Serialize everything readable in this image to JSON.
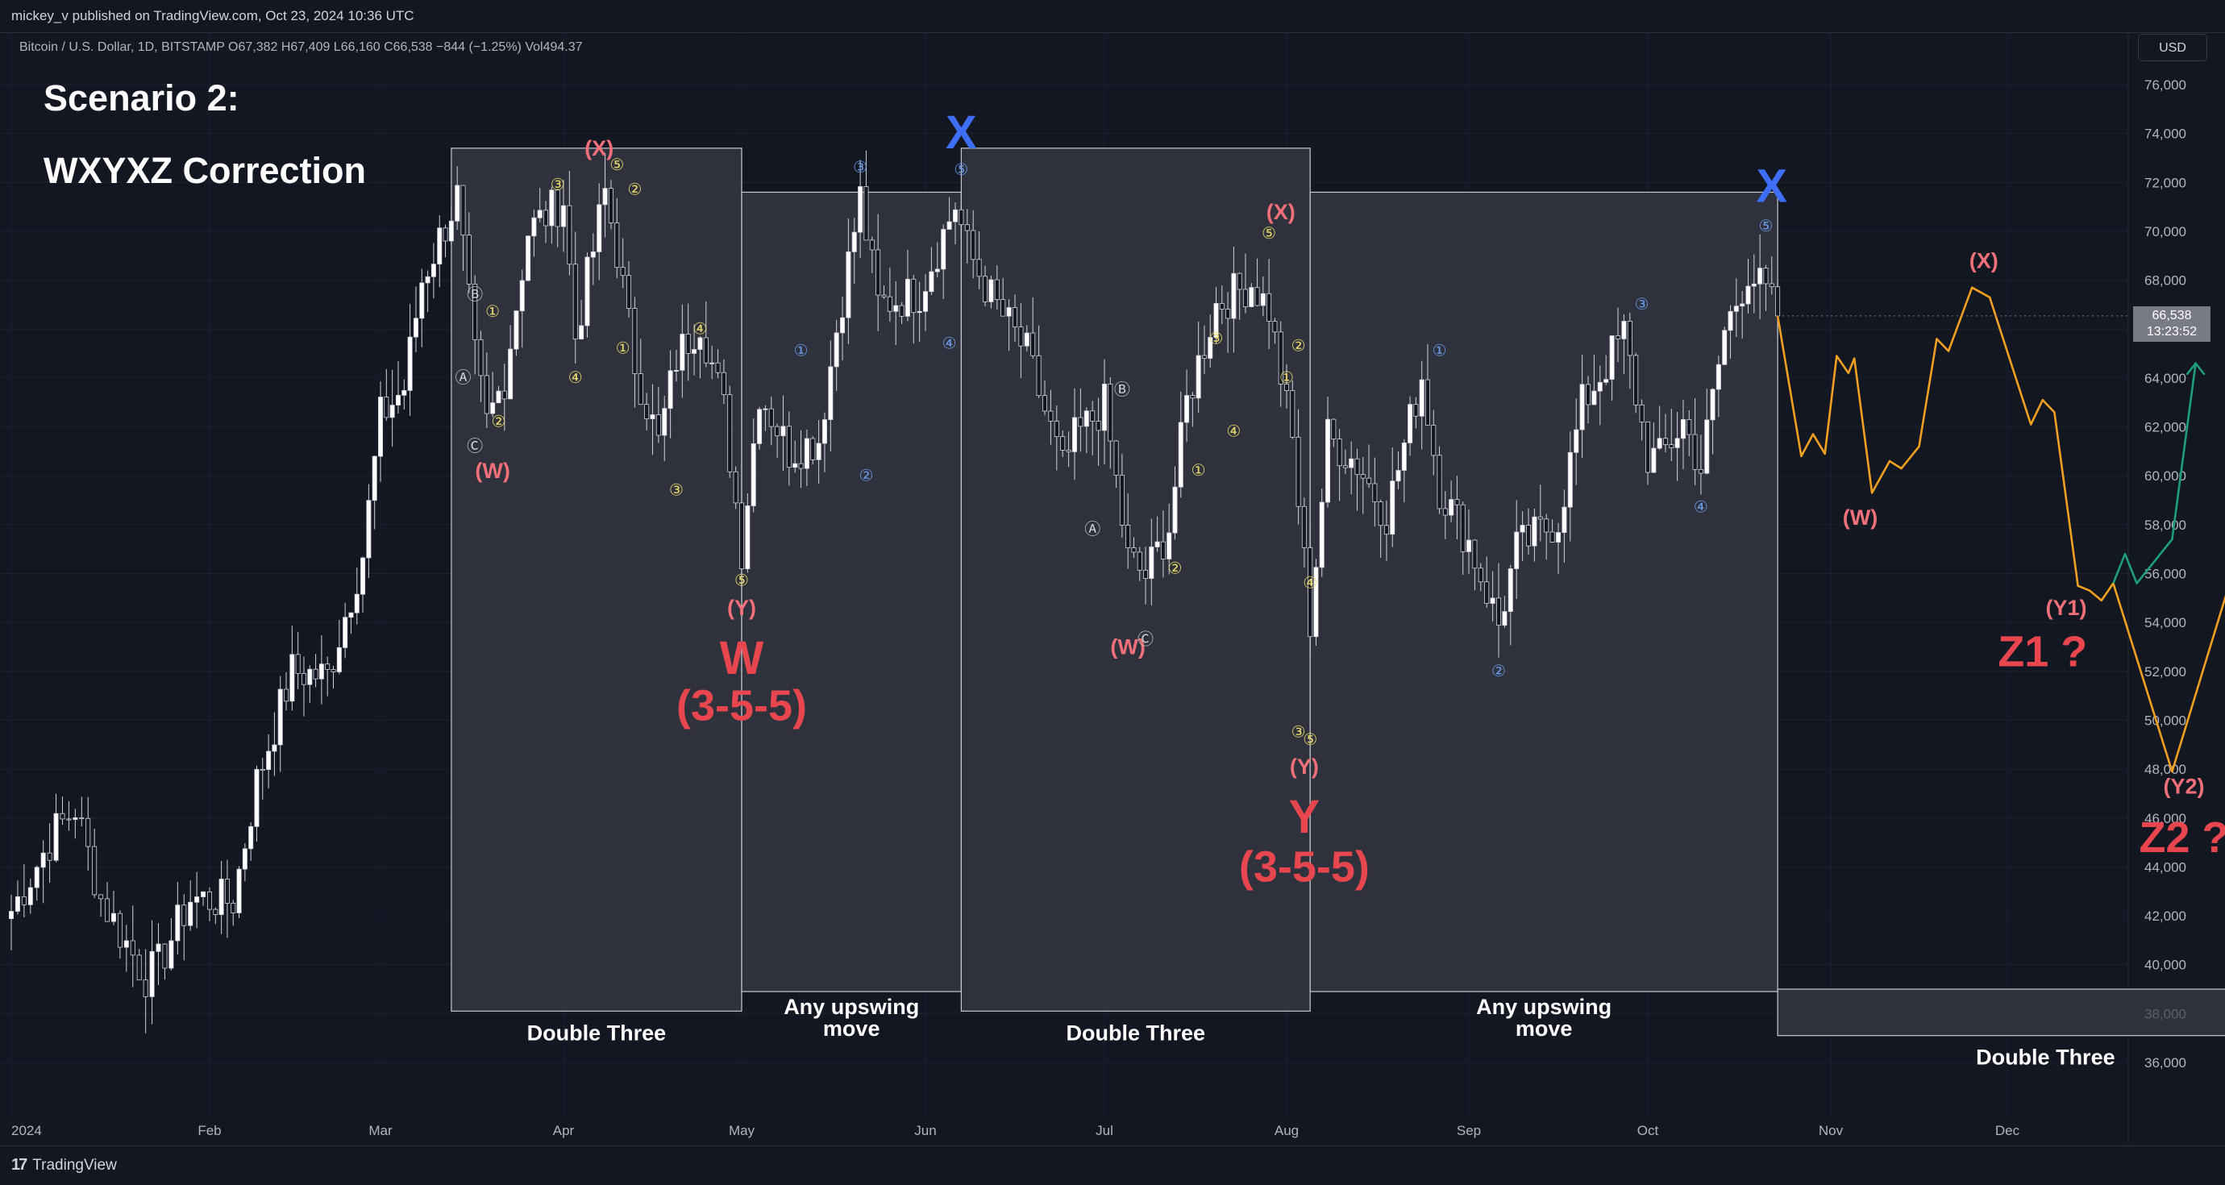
{
  "header": {
    "published": "mickey_v published on TradingView.com, Oct 23, 2024 10:36 UTC"
  },
  "symbol_info": "Bitcoin / U.S. Dollar, 1D, BITSTAMP  O67,382  H67,409  L66,160  C66,538  −844 (−1.25%)  Vol494.37",
  "currency_button": "USD",
  "annotations": {
    "title": "Scenario 2:",
    "subtitle": "WXYXZ Correction"
  },
  "price_tag": {
    "price": "66,538",
    "countdown": "13:23:52"
  },
  "footer": {
    "brand": "TradingView",
    "logo": "17"
  },
  "colors": {
    "background": "#131722",
    "candle_up": "#ffffff",
    "candle_down": "#131722",
    "box_fill": "#3a3d48",
    "wave_pink": "#f0707a",
    "wave_red": "#e8464f",
    "wave_blue": "#3d6ef5",
    "wave_yellow": "#e8d86a",
    "wave_lightblue": "#6a9ae8",
    "projection_orange": "#f0a020",
    "projection_green": "#1e9e7e"
  },
  "chart_data": {
    "type": "candlestick",
    "symbol": "BTCUSD",
    "timeframe": "1D",
    "y_axis": {
      "min": 35000,
      "max": 77000,
      "ticks": [
        36000,
        38000,
        40000,
        42000,
        44000,
        46000,
        48000,
        50000,
        52000,
        54000,
        56000,
        58000,
        60000,
        62000,
        64000,
        66000,
        68000,
        70000,
        72000,
        74000,
        76000
      ],
      "tick_labels": [
        "36,000",
        "38,000",
        "40,000",
        "42,000",
        "44,000",
        "46,000",
        "48,000",
        "50,000",
        "52,000",
        "54,000",
        "56,000",
        "58,000",
        "60,000",
        "62,000",
        "64,000",
        "66,000",
        "68,000",
        "70,000",
        "72,000",
        "74,000",
        "76,000"
      ]
    },
    "x_axis": {
      "start": "2024-01-01",
      "end": "2024-12-31",
      "ticks": [
        {
          "date": "2024-01-01",
          "label": "2024"
        },
        {
          "date": "2024-02-01",
          "label": "Feb"
        },
        {
          "date": "2024-03-01",
          "label": "Mar"
        },
        {
          "date": "2024-04-01",
          "label": "Apr"
        },
        {
          "date": "2024-05-01",
          "label": "May"
        },
        {
          "date": "2024-06-01",
          "label": "Jun"
        },
        {
          "date": "2024-07-01",
          "label": "Jul"
        },
        {
          "date": "2024-08-01",
          "label": "Aug"
        },
        {
          "date": "2024-09-01",
          "label": "Sep"
        },
        {
          "date": "2024-10-01",
          "label": "Oct"
        },
        {
          "date": "2024-11-01",
          "label": "Nov"
        },
        {
          "date": "2024-12-01",
          "label": "Dec"
        }
      ]
    },
    "price_path": [
      [
        "2024-01-01",
        42200
      ],
      [
        "2024-01-08",
        45500
      ],
      [
        "2024-01-11",
        46400
      ],
      [
        "2024-01-15",
        42700
      ],
      [
        "2024-01-22",
        39500
      ],
      [
        "2024-01-24",
        40000
      ],
      [
        "2024-01-29",
        42700
      ],
      [
        "2024-02-05",
        42600
      ],
      [
        "2024-02-09",
        47500
      ],
      [
        "2024-02-15",
        52000
      ],
      [
        "2024-02-21",
        51800
      ],
      [
        "2024-02-27",
        56800
      ],
      [
        "2024-03-01",
        62400
      ],
      [
        "2024-03-05",
        63600
      ],
      [
        "2024-03-08",
        68000
      ],
      [
        "2024-03-14",
        71400
      ],
      [
        "2024-03-17",
        64800
      ],
      [
        "2024-03-19",
        62100
      ],
      [
        "2024-03-22",
        64000
      ],
      [
        "2024-03-26",
        70000
      ],
      [
        "2024-04-01",
        71300
      ],
      [
        "2024-04-03",
        65700
      ],
      [
        "2024-04-08",
        71600
      ],
      [
        "2024-04-10",
        69200
      ],
      [
        "2024-04-13",
        64600
      ],
      [
        "2024-04-17",
        61300
      ],
      [
        "2024-04-20",
        64800
      ],
      [
        "2024-04-24",
        66400
      ],
      [
        "2024-04-28",
        62700
      ],
      [
        "2024-05-01",
        57000
      ],
      [
        "2024-05-04",
        63500
      ],
      [
        "2024-05-09",
        61000
      ],
      [
        "2024-05-14",
        61500
      ],
      [
        "2024-05-17",
        66000
      ],
      [
        "2024-05-21",
        71400
      ],
      [
        "2024-05-24",
        67000
      ],
      [
        "2024-05-31",
        67500
      ],
      [
        "2024-06-06",
        71100
      ],
      [
        "2024-06-08",
        69300
      ],
      [
        "2024-06-12",
        67300
      ],
      [
        "2024-06-18",
        65000
      ],
      [
        "2024-06-24",
        60300
      ],
      [
        "2024-06-26",
        61500
      ],
      [
        "2024-07-01",
        62900
      ],
      [
        "2024-07-05",
        56600
      ],
      [
        "2024-07-08",
        55900
      ],
      [
        "2024-07-12",
        57900
      ],
      [
        "2024-07-15",
        63000
      ],
      [
        "2024-07-20",
        67000
      ],
      [
        "2024-07-26",
        67900
      ],
      [
        "2024-07-29",
        66800
      ],
      [
        "2024-08-02",
        61400
      ],
      [
        "2024-08-05",
        54000
      ],
      [
        "2024-08-08",
        61600
      ],
      [
        "2024-08-13",
        60500
      ],
      [
        "2024-08-18",
        58400
      ],
      [
        "2024-08-24",
        64100
      ],
      [
        "2024-08-27",
        59500
      ],
      [
        "2024-09-01",
        57300
      ],
      [
        "2024-09-06",
        53900
      ],
      [
        "2024-09-09",
        57000
      ],
      [
        "2024-09-16",
        58200
      ],
      [
        "2024-09-20",
        62900
      ],
      [
        "2024-09-27",
        65800
      ],
      [
        "2024-10-01",
        60800
      ],
      [
        "2024-10-03",
        60700
      ],
      [
        "2024-10-07",
        62200
      ],
      [
        "2024-10-10",
        60300
      ],
      [
        "2024-10-14",
        65900
      ],
      [
        "2024-10-18",
        68400
      ],
      [
        "2024-10-21",
        67400
      ],
      [
        "2024-10-23",
        66538
      ]
    ],
    "projection_orange": [
      [
        "2024-10-23",
        66538
      ],
      [
        "2024-10-27",
        60800
      ],
      [
        "2024-10-29",
        61700
      ],
      [
        "2024-10-31",
        60900
      ],
      [
        "2024-11-02",
        64900
      ],
      [
        "2024-11-04",
        64200
      ],
      [
        "2024-11-05",
        64800
      ],
      [
        "2024-11-08",
        59300
      ],
      [
        "2024-11-11",
        60600
      ],
      [
        "2024-11-13",
        60300
      ],
      [
        "2024-11-16",
        61200
      ],
      [
        "2024-11-19",
        65600
      ],
      [
        "2024-11-21",
        65100
      ],
      [
        "2024-11-25",
        67700
      ],
      [
        "2024-11-28",
        67300
      ],
      [
        "2024-12-05",
        62100
      ],
      [
        "2024-12-07",
        63100
      ],
      [
        "2024-12-09",
        62600
      ],
      [
        "2024-12-13",
        55500
      ],
      [
        "2024-12-15",
        55300
      ],
      [
        "2024-12-17",
        54900
      ],
      [
        "2024-12-19",
        55600
      ],
      [
        "2024-12-29",
        47900
      ],
      [
        "2025-01-15",
        61300
      ]
    ],
    "projection_green": [
      [
        "2024-12-19",
        55600
      ],
      [
        "2024-12-21",
        56800
      ],
      [
        "2024-12-23",
        55600
      ],
      [
        "2024-12-25",
        56200
      ],
      [
        "2024-12-29",
        57400
      ],
      [
        "2025-01-02",
        64600
      ]
    ],
    "shaded_boxes": [
      {
        "from": "2024-03-13",
        "to": "2024-05-01",
        "price_top": 73400,
        "price_bottom": 38100,
        "label": "Double Three"
      },
      {
        "from": "2024-05-01",
        "to": "2024-06-07",
        "price_top": 71600,
        "price_bottom": 38900,
        "label": "Any upswing\nmove"
      },
      {
        "from": "2024-06-07",
        "to": "2024-08-05",
        "price_top": 73400,
        "price_bottom": 38100,
        "label": "Double Three"
      },
      {
        "from": "2024-08-05",
        "to": "2024-10-23",
        "price_top": 71600,
        "price_bottom": 38900,
        "label": "Any upswing\nmove"
      },
      {
        "from": "2024-10-23",
        "to": "2025-01-22",
        "price_top": 39000,
        "price_bottom": 37100,
        "label": "Double Three"
      }
    ],
    "wave_labels": [
      {
        "text": "(X)",
        "date": "2024-04-07",
        "price": 73100,
        "color": "pink",
        "size": "medium"
      },
      {
        "text": "(W)",
        "date": "2024-03-20",
        "price": 59900,
        "color": "pink",
        "size": "medium"
      },
      {
        "text": "(Y)",
        "date": "2024-05-01",
        "price": 54300,
        "color": "pink",
        "size": "medium"
      },
      {
        "text": "W",
        "date": "2024-05-01",
        "price": 51900,
        "color": "red",
        "size": "big"
      },
      {
        "text": "(3-5-5)",
        "date": "2024-05-01",
        "price": 50000,
        "color": "red",
        "size": "big"
      },
      {
        "text": "X",
        "date": "2024-06-07",
        "price": 73400,
        "color": "blue",
        "size": "big"
      },
      {
        "text": "(X)",
        "date": "2024-07-31",
        "price": 70500,
        "color": "pink",
        "size": "medium"
      },
      {
        "text": "(W)",
        "date": "2024-07-05",
        "price": 52700,
        "color": "pink",
        "size": "medium"
      },
      {
        "text": "(Y)",
        "date": "2024-08-04",
        "price": 47800,
        "color": "pink",
        "size": "medium"
      },
      {
        "text": "Y",
        "date": "2024-08-04",
        "price": 45400,
        "color": "red",
        "size": "big"
      },
      {
        "text": "(3-5-5)",
        "date": "2024-08-04",
        "price": 43400,
        "color": "red",
        "size": "big"
      },
      {
        "text": "X",
        "date": "2024-10-22",
        "price": 71200,
        "color": "blue",
        "size": "big"
      },
      {
        "text": "(X)",
        "date": "2024-11-27",
        "price": 68500,
        "color": "pink",
        "size": "medium"
      },
      {
        "text": "(W)",
        "date": "2024-11-06",
        "price": 58000,
        "color": "pink",
        "size": "medium"
      },
      {
        "text": "(Y1)",
        "date": "2024-12-11",
        "price": 54300,
        "color": "pink",
        "size": "medium"
      },
      {
        "text": "Z1 ?",
        "date": "2024-12-07",
        "price": 52200,
        "color": "red",
        "size": "big"
      },
      {
        "text": "(Y2)",
        "date": "2024-12-31",
        "price": 47000,
        "color": "pink",
        "size": "medium"
      },
      {
        "text": "Z2 ?",
        "date": "2024-12-31",
        "price": 44600,
        "color": "red",
        "size": "big"
      }
    ],
    "minor_labels": [
      {
        "text": "Ⓑ",
        "date": "2024-03-17",
        "price": 67200,
        "color": "white"
      },
      {
        "text": "Ⓐ",
        "date": "2024-03-15",
        "price": 63800,
        "color": "white"
      },
      {
        "text": "Ⓒ",
        "date": "2024-03-17",
        "price": 61000,
        "color": "white"
      },
      {
        "text": "①",
        "date": "2024-03-20",
        "price": 66500,
        "color": "yellow"
      },
      {
        "text": "②",
        "date": "2024-03-21",
        "price": 62000,
        "color": "yellow"
      },
      {
        "text": "③",
        "date": "2024-03-31",
        "price": 71700,
        "color": "yellow"
      },
      {
        "text": "④",
        "date": "2024-04-03",
        "price": 63800,
        "color": "yellow"
      },
      {
        "text": "⑤",
        "date": "2024-04-10",
        "price": 72500,
        "color": "yellow"
      },
      {
        "text": "②",
        "date": "2024-04-13",
        "price": 71500,
        "color": "yellow"
      },
      {
        "text": "①",
        "date": "2024-04-11",
        "price": 65000,
        "color": "yellow"
      },
      {
        "text": "④",
        "date": "2024-04-24",
        "price": 65800,
        "color": "yellow"
      },
      {
        "text": "③",
        "date": "2024-04-20",
        "price": 59200,
        "color": "yellow"
      },
      {
        "text": "⑤",
        "date": "2024-05-01",
        "price": 55500,
        "color": "yellow"
      },
      {
        "text": "①",
        "date": "2024-05-11",
        "price": 64900,
        "color": "lightblue"
      },
      {
        "text": "②",
        "date": "2024-05-22",
        "price": 59800,
        "color": "lightblue"
      },
      {
        "text": "③",
        "date": "2024-05-21",
        "price": 72400,
        "color": "lightblue"
      },
      {
        "text": "④",
        "date": "2024-06-05",
        "price": 65200,
        "color": "lightblue"
      },
      {
        "text": "⑤",
        "date": "2024-06-07",
        "price": 72300,
        "color": "lightblue"
      },
      {
        "text": "Ⓑ",
        "date": "2024-07-04",
        "price": 63300,
        "color": "white"
      },
      {
        "text": "Ⓐ",
        "date": "2024-06-29",
        "price": 57600,
        "color": "white"
      },
      {
        "text": "Ⓒ",
        "date": "2024-07-08",
        "price": 53100,
        "color": "white"
      },
      {
        "text": "①",
        "date": "2024-07-17",
        "price": 60000,
        "color": "yellow"
      },
      {
        "text": "②",
        "date": "2024-07-13",
        "price": 56000,
        "color": "yellow"
      },
      {
        "text": "③",
        "date": "2024-07-20",
        "price": 65400,
        "color": "yellow"
      },
      {
        "text": "④",
        "date": "2024-07-23",
        "price": 61600,
        "color": "yellow"
      },
      {
        "text": "⑤",
        "date": "2024-07-29",
        "price": 69700,
        "color": "yellow"
      },
      {
        "text": "②",
        "date": "2024-08-03",
        "price": 65100,
        "color": "yellow"
      },
      {
        "text": "①",
        "date": "2024-08-01",
        "price": 63800,
        "color": "yellow"
      },
      {
        "text": "④",
        "date": "2024-08-05",
        "price": 55400,
        "color": "yellow"
      },
      {
        "text": "③",
        "date": "2024-08-03",
        "price": 49300,
        "color": "yellow"
      },
      {
        "text": "⑤",
        "date": "2024-08-05",
        "price": 49000,
        "color": "yellow"
      },
      {
        "text": "①",
        "date": "2024-08-27",
        "price": 64900,
        "color": "lightblue"
      },
      {
        "text": "②",
        "date": "2024-09-06",
        "price": 51800,
        "color": "lightblue"
      },
      {
        "text": "③",
        "date": "2024-09-30",
        "price": 66800,
        "color": "lightblue"
      },
      {
        "text": "④",
        "date": "2024-10-10",
        "price": 58500,
        "color": "lightblue"
      },
      {
        "text": "⑤",
        "date": "2024-10-21",
        "price": 70000,
        "color": "lightblue"
      }
    ]
  }
}
